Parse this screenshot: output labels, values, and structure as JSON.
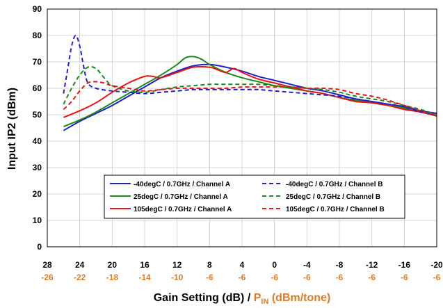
{
  "chart_data": {
    "type": "line",
    "ylabel": "Input IP2 (dBm)",
    "xlabel_main": "Gain Setting (dB) / ",
    "xlabel_pin": "P",
    "xlabel_pin_sub": "IN",
    "xlabel_unit": " (dBm/tone)",
    "ylim": [
      0,
      90
    ],
    "yticks": [
      "0",
      "10",
      "20",
      "30",
      "40",
      "50",
      "60",
      "70",
      "80",
      "90"
    ],
    "xlim": [
      28,
      -20
    ],
    "xticks": [
      "28",
      "24",
      "20",
      "16",
      "12",
      "8",
      "4",
      "0",
      "-4",
      "-8",
      "-12",
      "-16",
      "-20"
    ],
    "xticks2": [
      "-26",
      "-22",
      "-18",
      "-14",
      "-10",
      "-6",
      "-6",
      "-6",
      "-6",
      "-6",
      "-6",
      "-6",
      "-6"
    ],
    "grid": true,
    "legend_position": "lower-center",
    "series": [
      {
        "name": "-40degC  /  0.7GHz /  Channel  A",
        "color": "#1F1FCC",
        "dash": "solid",
        "x": [
          26,
          24,
          22,
          20,
          18,
          16,
          14,
          12,
          10,
          8,
          6,
          4,
          2,
          0,
          -2,
          -4,
          -6,
          -8,
          -10,
          -12,
          -14,
          -16,
          -18,
          -20
        ],
        "y": [
          44,
          47.5,
          50.5,
          53.5,
          57,
          60.5,
          64,
          66.5,
          68.5,
          69,
          68,
          66.5,
          64.5,
          63,
          61.5,
          60,
          59,
          57.5,
          56,
          55,
          54,
          53,
          51.5,
          50.5
        ]
      },
      {
        "name": "25degC  /  0.7GHz /  Channel  A",
        "color": "#1A8A1A",
        "dash": "solid",
        "x": [
          26,
          24,
          22,
          20,
          18,
          16,
          14,
          12,
          11,
          10,
          9,
          8,
          6,
          4,
          2,
          0,
          -2,
          -4,
          -6,
          -8,
          -10,
          -12,
          -14,
          -16,
          -18,
          -20
        ],
        "y": [
          45.5,
          48,
          51,
          54.5,
          58,
          61.5,
          65,
          69,
          71.5,
          72,
          71,
          69,
          66,
          64,
          62.5,
          61,
          60,
          59,
          58,
          56.5,
          55.5,
          54.5,
          53.5,
          52.5,
          51,
          50
        ]
      },
      {
        "name": "105degC  /  0.7GHz /  Channel  A",
        "color": "#EE1111",
        "dash": "solid",
        "x": [
          26,
          24,
          22,
          20,
          18,
          16,
          15,
          14,
          12,
          10,
          8,
          7,
          6,
          5,
          4,
          2,
          0,
          -2,
          -4,
          -6,
          -8,
          -10,
          -12,
          -14,
          -16,
          -18,
          -20
        ],
        "y": [
          49,
          51.5,
          54.5,
          58.5,
          62,
          64.5,
          64.5,
          64,
          66,
          68,
          68,
          67,
          66,
          67.5,
          66,
          63.5,
          62,
          60.5,
          59,
          58,
          56.5,
          55,
          54.5,
          53.5,
          52,
          51,
          49.5
        ]
      },
      {
        "name": "-40degC  /  0.7GHz /  Channel  B",
        "color": "#1F1FCC",
        "dash": "dashed",
        "x": [
          26,
          25.5,
          25,
          24.5,
          24,
          23.5,
          23,
          22,
          20,
          18,
          16,
          14,
          12,
          10,
          8,
          6,
          4,
          2,
          0,
          -2,
          -4,
          -6,
          -8,
          -10,
          -12,
          -14,
          -16,
          -18,
          -20
        ],
        "y": [
          58,
          67,
          76,
          80,
          76,
          68,
          62,
          60,
          59,
          58.5,
          58,
          58.5,
          59,
          59.5,
          59.5,
          59.5,
          59.5,
          59.5,
          59,
          58.5,
          58,
          57.5,
          57,
          56,
          55,
          54,
          53,
          51,
          50.5
        ]
      },
      {
        "name": "25degC  /  0.7GHz /  Channel  B",
        "color": "#1A8A1A",
        "dash": "dashed",
        "x": [
          26,
          25,
          24,
          23,
          22,
          21,
          20,
          18,
          16,
          14,
          12,
          10,
          8,
          6,
          4,
          2,
          0,
          -2,
          -4,
          -6,
          -8,
          -10,
          -12,
          -14,
          -16,
          -18,
          -20
        ],
        "y": [
          54,
          60,
          65,
          68,
          67.5,
          64,
          61,
          59,
          58.5,
          59.5,
          60.5,
          61,
          61.5,
          61.5,
          61.5,
          61.5,
          61,
          60.5,
          60,
          59.5,
          58.5,
          57,
          56,
          55,
          53.5,
          52,
          50
        ]
      },
      {
        "name": "105degC  /  0.7GHz /  Channel  B",
        "color": "#EE1111",
        "dash": "dashed",
        "x": [
          26,
          25,
          24,
          23,
          22,
          21,
          20,
          18,
          16,
          14,
          12,
          10,
          8,
          6,
          4,
          2,
          0,
          -2,
          -4,
          -6,
          -8,
          -10,
          -12,
          -14,
          -16,
          -18,
          -20
        ],
        "y": [
          52,
          55,
          59,
          62,
          62.5,
          62,
          61,
          60,
          59,
          59.5,
          60,
          60,
          60,
          60,
          60.5,
          60.5,
          60.5,
          60.5,
          60,
          60,
          59.5,
          58,
          57,
          55.5,
          53.5,
          51.5,
          49.5
        ]
      }
    ]
  }
}
